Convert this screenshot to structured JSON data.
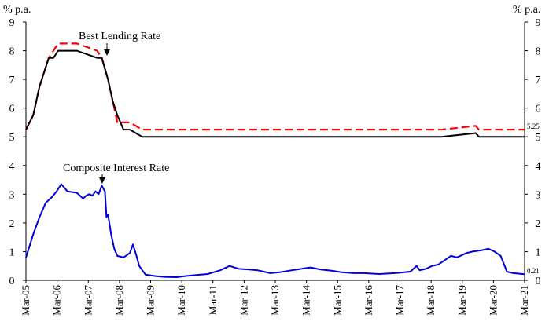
{
  "chart_data": {
    "type": "line",
    "left_axis_unit": "% p.a.",
    "right_axis_unit": "% p.a.",
    "ylim": [
      0,
      9
    ],
    "yticks": [
      0,
      1,
      2,
      3,
      4,
      5,
      6,
      7,
      8,
      9
    ],
    "xlim": [
      2005.167,
      2021.167
    ],
    "x_ticks": [
      {
        "label": "Mar-05",
        "x": 2005.167
      },
      {
        "label": "Mar-06",
        "x": 2006.167
      },
      {
        "label": "Mar-07",
        "x": 2007.167
      },
      {
        "label": "Mar-08",
        "x": 2008.167
      },
      {
        "label": "Mar-09",
        "x": 2009.167
      },
      {
        "label": "Mar-10",
        "x": 2010.167
      },
      {
        "label": "Mar-11",
        "x": 2011.167
      },
      {
        "label": "Mar-12",
        "x": 2012.167
      },
      {
        "label": "Mar-13",
        "x": 2013.167
      },
      {
        "label": "Mar-14",
        "x": 2014.167
      },
      {
        "label": "Mar-15",
        "x": 2015.167
      },
      {
        "label": "Mar-16",
        "x": 2016.167
      },
      {
        "label": "Mar-17",
        "x": 2017.167
      },
      {
        "label": "Mar-18",
        "x": 2018.167
      },
      {
        "label": "Mar-19",
        "x": 2019.167
      },
      {
        "label": "Mar-20",
        "x": 2020.167
      },
      {
        "label": "Mar-21",
        "x": 2021.167
      }
    ],
    "annotations": [
      {
        "text": "Best Lending Rate"
      },
      {
        "text": "Composite Interest Rate"
      }
    ],
    "end_labels": [
      {
        "text": "5.25",
        "y": 5.25
      },
      {
        "text": "0.21",
        "y": 0.21
      }
    ],
    "series": [
      {
        "style": "dashed",
        "color": "#ff0000",
        "x": [
          2005.167,
          2005.4,
          2005.6,
          2005.75,
          2005.9,
          2006.05,
          2006.2,
          2006.8,
          2007.45,
          2007.6,
          2007.8,
          2007.95,
          2008.1,
          2008.3,
          2008.5,
          2008.9,
          2018.5,
          2019.6,
          2019.7,
          2021.167
        ],
        "y": [
          5.25,
          5.75,
          6.75,
          7.25,
          7.75,
          8.0,
          8.25,
          8.25,
          8.0,
          7.75,
          7.0,
          6.25,
          5.5,
          5.5,
          5.5,
          5.25,
          5.25,
          5.38,
          5.25,
          5.25
        ]
      },
      {
        "style": "solid",
        "color": "#000000",
        "x": [
          2005.167,
          2005.4,
          2005.6,
          2005.75,
          2005.9,
          2006.05,
          2006.2,
          2006.8,
          2007.45,
          2007.6,
          2007.8,
          2007.95,
          2008.1,
          2008.3,
          2008.5,
          2008.9,
          2018.5,
          2019.6,
          2019.7,
          2021.167
        ],
        "y": [
          5.25,
          5.75,
          6.75,
          7.25,
          7.75,
          7.75,
          8.0,
          8.0,
          7.75,
          7.75,
          7.0,
          6.25,
          5.75,
          5.25,
          5.25,
          5.0,
          5.0,
          5.13,
          5.0,
          5.0
        ]
      },
      {
        "style": "solid",
        "color": "#0000dd",
        "x": [
          2005.167,
          2005.4,
          2005.6,
          2005.8,
          2006.0,
          2006.15,
          2006.3,
          2006.5,
          2006.8,
          2007.0,
          2007.1,
          2007.2,
          2007.3,
          2007.4,
          2007.5,
          2007.6,
          2007.7,
          2007.75,
          2007.8,
          2007.9,
          2008.0,
          2008.1,
          2008.3,
          2008.5,
          2008.6,
          2008.7,
          2008.8,
          2009.0,
          2009.3,
          2009.6,
          2010.0,
          2010.3,
          2010.6,
          2011.0,
          2011.4,
          2011.7,
          2012.0,
          2012.3,
          2012.6,
          2013.0,
          2013.3,
          2013.7,
          2014.0,
          2014.3,
          2014.6,
          2015.0,
          2015.3,
          2015.7,
          2016.0,
          2016.5,
          2017.0,
          2017.5,
          2017.7,
          2017.8,
          2018.0,
          2018.2,
          2018.4,
          2018.6,
          2018.8,
          2019.0,
          2019.3,
          2019.5,
          2019.8,
          2020.0,
          2020.2,
          2020.4,
          2020.6,
          2020.8,
          2021.167
        ],
        "y": [
          0.8,
          1.6,
          2.2,
          2.7,
          2.9,
          3.1,
          3.35,
          3.1,
          3.05,
          2.85,
          2.95,
          3.0,
          2.95,
          3.1,
          3.0,
          3.3,
          3.1,
          2.2,
          2.3,
          1.6,
          1.1,
          0.85,
          0.8,
          0.95,
          1.25,
          0.9,
          0.5,
          0.2,
          0.15,
          0.12,
          0.11,
          0.15,
          0.18,
          0.22,
          0.35,
          0.5,
          0.4,
          0.38,
          0.35,
          0.25,
          0.28,
          0.35,
          0.4,
          0.45,
          0.38,
          0.33,
          0.28,
          0.25,
          0.25,
          0.22,
          0.25,
          0.3,
          0.5,
          0.35,
          0.4,
          0.5,
          0.55,
          0.7,
          0.85,
          0.8,
          0.95,
          1.0,
          1.05,
          1.1,
          1.0,
          0.85,
          0.3,
          0.25,
          0.21
        ]
      }
    ]
  }
}
